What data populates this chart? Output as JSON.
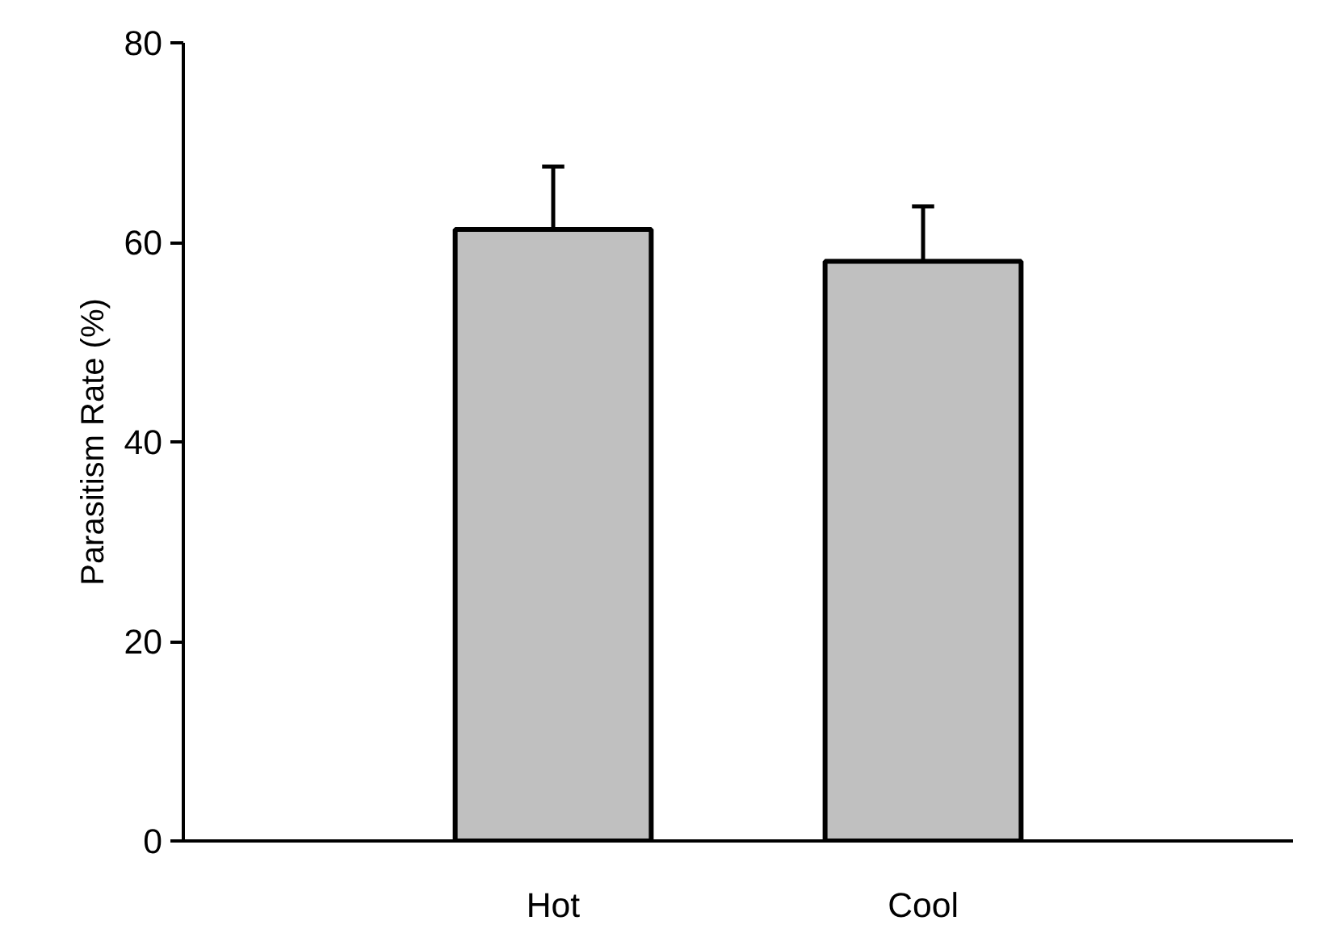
{
  "chart_data": {
    "type": "bar",
    "ylabel": "Parasitism Rate (%)",
    "categories": [
      "Hot",
      "Cool"
    ],
    "values": [
      61.3,
      58.1
    ],
    "errors": [
      6.3,
      5.5
    ],
    "color": "#c0c0c0",
    "ylim": [
      0,
      80
    ],
    "yticks": [
      0,
      20,
      40,
      60,
      80
    ],
    "grid": false
  }
}
